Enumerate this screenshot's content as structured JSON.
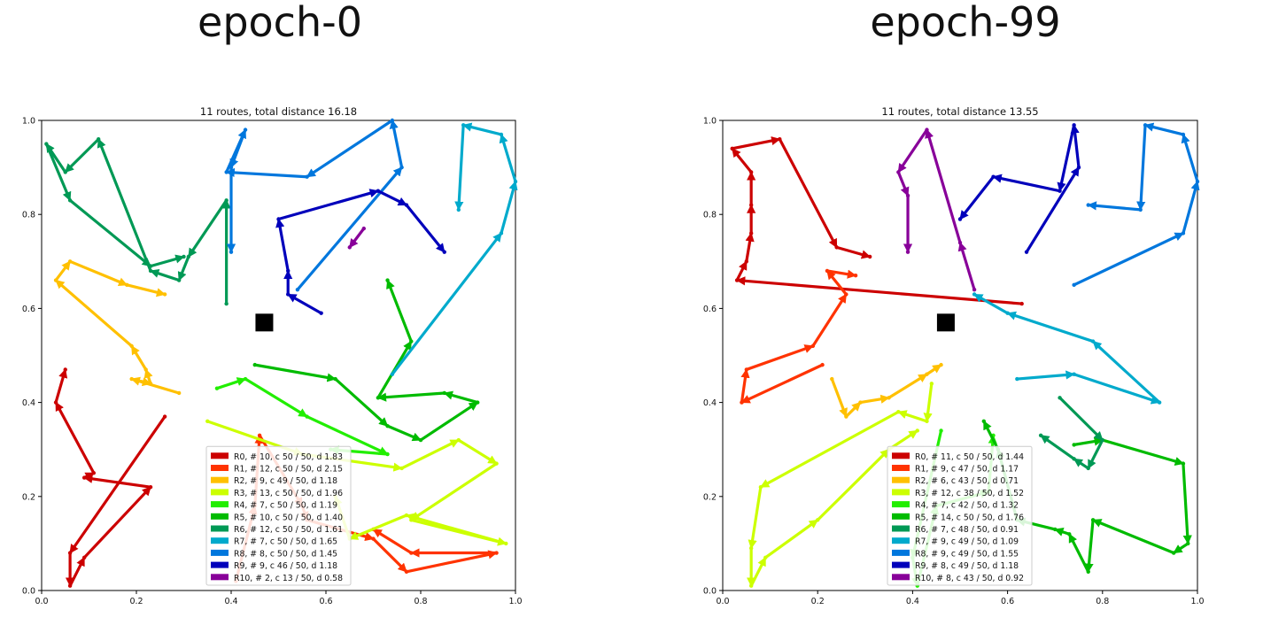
{
  "panels": [
    {
      "title": "epoch-0"
    },
    {
      "title": "epoch-99"
    }
  ],
  "chart_data": [
    {
      "type": "scatter",
      "title": "11 routes, total distance 16.18",
      "xlim": [
        0,
        1
      ],
      "ylim": [
        0,
        1
      ],
      "xticks": [
        "0.0",
        "0.2",
        "0.4",
        "0.6",
        "0.8",
        "1.0"
      ],
      "yticks": [
        "0.0",
        "0.2",
        "0.4",
        "0.6",
        "0.8",
        "1.0"
      ],
      "grid": false,
      "legend_position": "bottom-center",
      "depot": [
        0.47,
        0.57
      ],
      "series": [
        {
          "name": "R0, # 10, c 50 / 50, d 1.83",
          "color": "#cc0000",
          "points": [
            [
              0.26,
              0.37
            ],
            [
              0.06,
              0.08
            ],
            [
              0.06,
              0.01
            ],
            [
              0.09,
              0.07
            ],
            [
              0.23,
              0.22
            ],
            [
              0.09,
              0.24
            ],
            [
              0.11,
              0.25
            ],
            [
              0.03,
              0.4
            ],
            [
              0.05,
              0.47
            ]
          ]
        },
        {
          "name": "R1, # 12, c 50 / 50, d 2.15",
          "color": "#ff3300",
          "points": [
            [
              0.41,
              0.02
            ],
            [
              0.45,
              0.18
            ],
            [
              0.46,
              0.33
            ],
            [
              0.55,
              0.18
            ],
            [
              0.56,
              0.15
            ],
            [
              0.7,
              0.11
            ],
            [
              0.77,
              0.04
            ],
            [
              0.96,
              0.08
            ],
            [
              0.78,
              0.08
            ],
            [
              0.7,
              0.13
            ]
          ]
        },
        {
          "name": "R2, # 9, c 49 / 50, d 1.18",
          "color": "#ffc000",
          "points": [
            [
              0.29,
              0.42
            ],
            [
              0.19,
              0.45
            ],
            [
              0.23,
              0.44
            ],
            [
              0.22,
              0.47
            ],
            [
              0.19,
              0.52
            ],
            [
              0.03,
              0.66
            ],
            [
              0.06,
              0.7
            ],
            [
              0.18,
              0.65
            ],
            [
              0.26,
              0.63
            ]
          ]
        },
        {
          "name": "R3, # 13, c 50 / 50, d 1.96",
          "color": "#ccff00",
          "points": [
            [
              0.35,
              0.36
            ],
            [
              0.55,
              0.29
            ],
            [
              0.76,
              0.26
            ],
            [
              0.88,
              0.32
            ],
            [
              0.96,
              0.27
            ],
            [
              0.78,
              0.15
            ],
            [
              0.98,
              0.1
            ],
            [
              0.77,
              0.16
            ],
            [
              0.65,
              0.11
            ],
            [
              0.62,
              0.2
            ]
          ]
        },
        {
          "name": "R4, # 7, c 50 / 50, d 1.19",
          "color": "#22ee00",
          "points": [
            [
              0.37,
              0.43
            ],
            [
              0.43,
              0.45
            ],
            [
              0.56,
              0.37
            ],
            [
              0.73,
              0.29
            ],
            [
              0.61,
              0.3
            ]
          ]
        },
        {
          "name": "R5, # 10, c 50 / 50, d 1.40",
          "color": "#00bb00",
          "points": [
            [
              0.45,
              0.48
            ],
            [
              0.62,
              0.45
            ],
            [
              0.73,
              0.35
            ],
            [
              0.8,
              0.32
            ],
            [
              0.92,
              0.4
            ],
            [
              0.85,
              0.42
            ],
            [
              0.71,
              0.41
            ],
            [
              0.78,
              0.53
            ],
            [
              0.73,
              0.66
            ]
          ]
        },
        {
          "name": "R6, # 12, c 50 / 50, d 1.61",
          "color": "#009955",
          "points": [
            [
              0.39,
              0.61
            ],
            [
              0.39,
              0.83
            ],
            [
              0.31,
              0.71
            ],
            [
              0.29,
              0.66
            ],
            [
              0.23,
              0.68
            ],
            [
              0.12,
              0.96
            ],
            [
              0.05,
              0.89
            ],
            [
              0.01,
              0.95
            ],
            [
              0.06,
              0.83
            ],
            [
              0.23,
              0.69
            ],
            [
              0.3,
              0.71
            ]
          ]
        },
        {
          "name": "R7, # 7, c 50 / 50, d 1.65",
          "color": "#00aacc",
          "points": [
            [
              0.74,
              0.46
            ],
            [
              0.97,
              0.76
            ],
            [
              1.0,
              0.87
            ],
            [
              0.97,
              0.97
            ],
            [
              0.89,
              0.99
            ],
            [
              0.88,
              0.81
            ]
          ]
        },
        {
          "name": "R8, # 8, c 50 / 50, d 1.45",
          "color": "#0077dd",
          "points": [
            [
              0.54,
              0.64
            ],
            [
              0.76,
              0.9
            ],
            [
              0.74,
              1.0
            ],
            [
              0.56,
              0.88
            ],
            [
              0.39,
              0.89
            ],
            [
              0.43,
              0.98
            ],
            [
              0.4,
              0.9
            ],
            [
              0.4,
              0.72
            ]
          ]
        },
        {
          "name": "R9, # 9, c 46 / 50, d 1.18",
          "color": "#0000bb",
          "points": [
            [
              0.59,
              0.59
            ],
            [
              0.52,
              0.63
            ],
            [
              0.52,
              0.68
            ],
            [
              0.5,
              0.79
            ],
            [
              0.71,
              0.85
            ],
            [
              0.77,
              0.82
            ],
            [
              0.85,
              0.72
            ]
          ]
        },
        {
          "name": "R10, # 2, c 13 / 50, d 0.58",
          "color": "#880099",
          "points": [
            [
              0.68,
              0.77
            ],
            [
              0.65,
              0.73
            ]
          ]
        }
      ]
    },
    {
      "type": "scatter",
      "title": "11 routes, total distance 13.55",
      "xlim": [
        0,
        1
      ],
      "ylim": [
        0,
        1
      ],
      "xticks": [
        "0.0",
        "0.2",
        "0.4",
        "0.6",
        "0.8",
        "1.0"
      ],
      "yticks": [
        "0.0",
        "0.2",
        "0.4",
        "0.6",
        "0.8",
        "1.0"
      ],
      "grid": false,
      "legend_position": "bottom-center",
      "depot": [
        0.47,
        0.57
      ],
      "series": [
        {
          "name": "R0, # 11, c 50 / 50, d 1.44",
          "color": "#cc0000",
          "points": [
            [
              0.63,
              0.61
            ],
            [
              0.03,
              0.66
            ],
            [
              0.05,
              0.7
            ],
            [
              0.06,
              0.76
            ],
            [
              0.06,
              0.82
            ],
            [
              0.06,
              0.89
            ],
            [
              0.02,
              0.94
            ],
            [
              0.12,
              0.96
            ],
            [
              0.24,
              0.73
            ],
            [
              0.31,
              0.71
            ]
          ]
        },
        {
          "name": "R1, # 9, c 47 / 50, d 1.17",
          "color": "#ff3300",
          "points": [
            [
              0.21,
              0.48
            ],
            [
              0.04,
              0.4
            ],
            [
              0.05,
              0.47
            ],
            [
              0.19,
              0.52
            ],
            [
              0.26,
              0.63
            ],
            [
              0.22,
              0.68
            ],
            [
              0.28,
              0.67
            ]
          ]
        },
        {
          "name": "R2, # 6, c 43 / 50, d 0.71",
          "color": "#ffc000",
          "points": [
            [
              0.23,
              0.45
            ],
            [
              0.26,
              0.37
            ],
            [
              0.29,
              0.4
            ],
            [
              0.35,
              0.41
            ],
            [
              0.43,
              0.46
            ],
            [
              0.46,
              0.48
            ]
          ]
        },
        {
          "name": "R3, # 12, c 38 / 50, d 1.52",
          "color": "#ccff00",
          "points": [
            [
              0.44,
              0.44
            ],
            [
              0.43,
              0.36
            ],
            [
              0.37,
              0.38
            ],
            [
              0.08,
              0.22
            ],
            [
              0.06,
              0.09
            ],
            [
              0.06,
              0.01
            ],
            [
              0.09,
              0.07
            ],
            [
              0.2,
              0.15
            ],
            [
              0.35,
              0.3
            ],
            [
              0.41,
              0.34
            ]
          ]
        },
        {
          "name": "R4, # 7, c 42 / 50, d 1.32",
          "color": "#22ee00",
          "points": [
            [
              0.46,
              0.34
            ],
            [
              0.4,
              0.07
            ],
            [
              0.41,
              0.01
            ],
            [
              0.45,
              0.18
            ],
            [
              0.56,
              0.21
            ],
            [
              0.57,
              0.33
            ]
          ]
        },
        {
          "name": "R5, # 14, c 50 / 50, d 1.76",
          "color": "#00bb00",
          "points": [
            [
              0.74,
              0.31
            ],
            [
              0.8,
              0.32
            ],
            [
              0.97,
              0.27
            ],
            [
              0.98,
              0.1
            ],
            [
              0.95,
              0.08
            ],
            [
              0.78,
              0.15
            ],
            [
              0.77,
              0.04
            ],
            [
              0.73,
              0.12
            ],
            [
              0.7,
              0.13
            ],
            [
              0.62,
              0.15
            ],
            [
              0.58,
              0.3
            ],
            [
              0.55,
              0.36
            ]
          ]
        },
        {
          "name": "R6, # 7, c 48 / 50, d 0.91",
          "color": "#009955",
          "points": [
            [
              0.71,
              0.41
            ],
            [
              0.8,
              0.32
            ],
            [
              0.77,
              0.26
            ],
            [
              0.74,
              0.28
            ],
            [
              0.67,
              0.33
            ]
          ]
        },
        {
          "name": "R7, # 9, c 49 / 50, d 1.09",
          "color": "#00aacc",
          "points": [
            [
              0.62,
              0.45
            ],
            [
              0.74,
              0.46
            ],
            [
              0.92,
              0.4
            ],
            [
              0.78,
              0.53
            ],
            [
              0.6,
              0.59
            ],
            [
              0.53,
              0.63
            ]
          ]
        },
        {
          "name": "R8, # 9, c 49 / 50, d 1.55",
          "color": "#0077dd",
          "points": [
            [
              0.74,
              0.65
            ],
            [
              0.97,
              0.76
            ],
            [
              1.0,
              0.87
            ],
            [
              0.97,
              0.97
            ],
            [
              0.89,
              0.99
            ],
            [
              0.88,
              0.81
            ],
            [
              0.77,
              0.82
            ]
          ]
        },
        {
          "name": "R9, # 8, c 49 / 50, d 1.18",
          "color": "#0000bb",
          "points": [
            [
              0.64,
              0.72
            ],
            [
              0.75,
              0.9
            ],
            [
              0.74,
              0.99
            ],
            [
              0.71,
              0.85
            ],
            [
              0.57,
              0.88
            ],
            [
              0.5,
              0.79
            ]
          ]
        },
        {
          "name": "R10, # 8, c 43 / 50, d 0.92",
          "color": "#880099",
          "points": [
            [
              0.53,
              0.64
            ],
            [
              0.5,
              0.74
            ],
            [
              0.43,
              0.98
            ],
            [
              0.37,
              0.89
            ],
            [
              0.39,
              0.84
            ],
            [
              0.39,
              0.72
            ]
          ]
        }
      ]
    }
  ]
}
